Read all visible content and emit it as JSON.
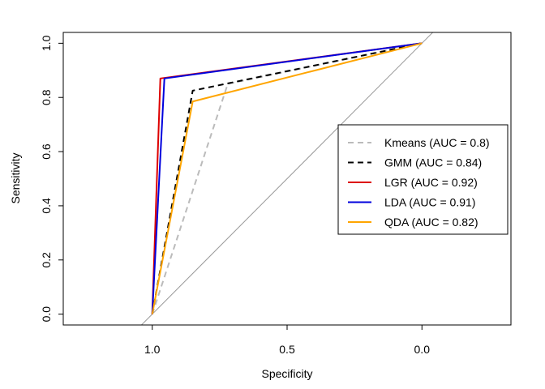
{
  "chart_data": {
    "type": "line",
    "title": "",
    "xlabel": "Specificity",
    "ylabel": "Sensitivity",
    "xlim": [
      1.33,
      -0.33
    ],
    "ylim": [
      -0.04,
      1.04
    ],
    "x_reversed": true,
    "xticks": [
      {
        "value": 1.0,
        "label": "1.0"
      },
      {
        "value": 0.5,
        "label": "0.5"
      },
      {
        "value": 0.0,
        "label": "0.0"
      }
    ],
    "yticks": [
      {
        "value": 0.0,
        "label": "0.0"
      },
      {
        "value": 0.2,
        "label": "0.2"
      },
      {
        "value": 0.4,
        "label": "0.4"
      },
      {
        "value": 0.6,
        "label": "0.6"
      },
      {
        "value": 0.8,
        "label": "0.8"
      },
      {
        "value": 1.0,
        "label": "1.0"
      }
    ],
    "grid": false,
    "legend_position": "right",
    "reference_line": {
      "color": "#999999",
      "from": [
        1.0,
        0.0
      ],
      "to": [
        0.0,
        1.0
      ]
    },
    "series": [
      {
        "name": "Kmeans (AUC = 0.8)",
        "color": "#bbbbbb",
        "dash": "dashed",
        "points": [
          [
            1.0,
            0.0
          ],
          [
            0.72,
            0.85
          ],
          [
            0.0,
            1.0
          ]
        ]
      },
      {
        "name": "GMM (AUC = 0.84)",
        "color": "#000000",
        "dash": "dashed",
        "points": [
          [
            1.0,
            0.0
          ],
          [
            0.85,
            0.825
          ],
          [
            0.0,
            1.0
          ]
        ]
      },
      {
        "name": "LGR (AUC = 0.92)",
        "color": "#dd0000",
        "dash": "solid",
        "points": [
          [
            1.0,
            0.0
          ],
          [
            0.97,
            0.87
          ],
          [
            0.0,
            1.0
          ]
        ]
      },
      {
        "name": "LDA (AUC = 0.91)",
        "color": "#0000dd",
        "dash": "solid",
        "points": [
          [
            1.0,
            0.0
          ],
          [
            0.955,
            0.87
          ],
          [
            0.0,
            1.0
          ]
        ]
      },
      {
        "name": "QDA (AUC = 0.82)",
        "color": "#ffa500",
        "dash": "solid",
        "points": [
          [
            1.0,
            0.0
          ],
          [
            0.85,
            0.785
          ],
          [
            0.0,
            1.0
          ]
        ]
      }
    ]
  }
}
